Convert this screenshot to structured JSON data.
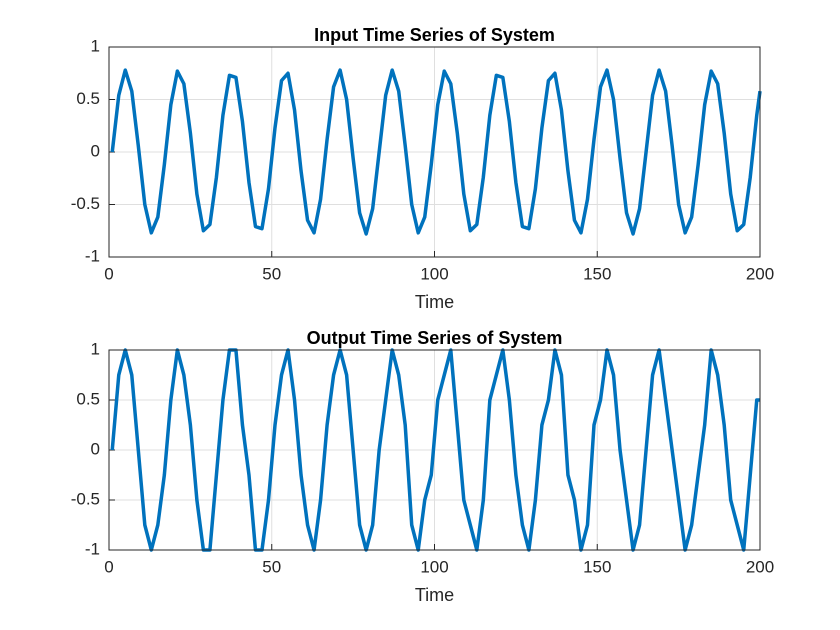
{
  "chart_data": [
    {
      "type": "line",
      "title": "Input Time Series of System",
      "x_label": "Time",
      "x": [
        1,
        3,
        5,
        7,
        9,
        11,
        13,
        15,
        17,
        19,
        21,
        23,
        25,
        27,
        29,
        31,
        33,
        35,
        37,
        39,
        41,
        43,
        45,
        47,
        49,
        51,
        53,
        55,
        57,
        59,
        61,
        63,
        65,
        67,
        69,
        71,
        73,
        75,
        77,
        79,
        81,
        83,
        85,
        87,
        89,
        91,
        93,
        95,
        97,
        99,
        101,
        103,
        105,
        107,
        109,
        111,
        113,
        115,
        117,
        119,
        121,
        123,
        125,
        127,
        129,
        131,
        133,
        135,
        137,
        139,
        141,
        143,
        145,
        147,
        149,
        151,
        153,
        155,
        157,
        159,
        161,
        163,
        165,
        167,
        169,
        171,
        173,
        175,
        177,
        179,
        181,
        183,
        185,
        187,
        189,
        191,
        193,
        195,
        197,
        199,
        200
      ],
      "series": [
        {
          "color": "#0072BD",
          "values": [
            0,
            0.54,
            0.78,
            0.58,
            0.06,
            -0.5,
            -0.77,
            -0.62,
            -0.12,
            0.45,
            0.77,
            0.65,
            0.18,
            -0.4,
            -0.75,
            -0.69,
            -0.24,
            0.35,
            0.73,
            0.71,
            0.29,
            -0.29,
            -0.71,
            -0.73,
            -0.35,
            0.23,
            0.68,
            0.75,
            0.4,
            -0.18,
            -0.65,
            -0.77,
            -0.45,
            0.12,
            0.62,
            0.78,
            0.5,
            -0.06,
            -0.58,
            -0.78,
            -0.54,
            0,
            0.54,
            0.78,
            0.58,
            0.06,
            -0.5,
            -0.77,
            -0.62,
            -0.12,
            0.45,
            0.77,
            0.65,
            0.18,
            -0.4,
            -0.75,
            -0.69,
            -0.24,
            0.35,
            0.73,
            0.71,
            0.29,
            -0.29,
            -0.71,
            -0.73,
            -0.35,
            0.23,
            0.68,
            0.75,
            0.4,
            -0.18,
            -0.65,
            -0.77,
            -0.45,
            0.12,
            0.62,
            0.78,
            0.5,
            -0.06,
            -0.58,
            -0.78,
            -0.54,
            0,
            0.54,
            0.78,
            0.58,
            0.06,
            -0.5,
            -0.77,
            -0.62,
            -0.12,
            0.45,
            0.77,
            0.65,
            0.18,
            -0.4,
            -0.75,
            -0.69,
            -0.24,
            0.35,
            0.58
          ]
        }
      ],
      "xlim": [
        0,
        200
      ],
      "xticks": [
        0,
        50,
        100,
        150,
        200
      ],
      "ylim": [
        -1,
        1
      ],
      "yticks": [
        -1,
        -0.5,
        0,
        0.5,
        1
      ],
      "grid": true
    },
    {
      "type": "line",
      "title": "Output Time Series of System",
      "x_label": "Time",
      "x": [
        1,
        3,
        5,
        7,
        9,
        11,
        13,
        15,
        17,
        19,
        21,
        23,
        25,
        27,
        29,
        31,
        33,
        35,
        37,
        39,
        41,
        43,
        45,
        47,
        49,
        51,
        53,
        55,
        57,
        59,
        61,
        63,
        65,
        67,
        69,
        71,
        73,
        75,
        77,
        79,
        81,
        83,
        85,
        87,
        89,
        91,
        93,
        95,
        97,
        99,
        101,
        103,
        105,
        107,
        109,
        111,
        113,
        115,
        117,
        119,
        121,
        123,
        125,
        127,
        129,
        131,
        133,
        135,
        137,
        139,
        141,
        143,
        145,
        147,
        149,
        151,
        153,
        155,
        157,
        159,
        161,
        163,
        165,
        167,
        169,
        171,
        173,
        175,
        177,
        179,
        181,
        183,
        185,
        187,
        189,
        191,
        193,
        195,
        197,
        199,
        200
      ],
      "series": [
        {
          "color": "#0072BD",
          "values": [
            0,
            0.75,
            1,
            0.75,
            0,
            -0.75,
            -1,
            -0.75,
            -0.25,
            0.5,
            1,
            0.75,
            0.25,
            -0.5,
            -1,
            -1,
            -0.25,
            0.5,
            1,
            1,
            0.25,
            -0.25,
            -1,
            -1,
            -0.5,
            0.25,
            0.75,
            1,
            0.5,
            -0.25,
            -0.75,
            -1,
            -0.5,
            0.25,
            0.75,
            1,
            0.75,
            0,
            -0.75,
            -1,
            -0.75,
            0,
            0.5,
            1,
            0.75,
            0.25,
            -0.75,
            -1,
            -0.5,
            -0.25,
            0.5,
            0.75,
            1,
            0.25,
            -0.5,
            -0.75,
            -1,
            -0.5,
            0.5,
            0.75,
            1,
            0.5,
            -0.25,
            -0.75,
            -1,
            -0.5,
            0.25,
            0.5,
            1,
            0.75,
            -0.25,
            -0.5,
            -1,
            -0.75,
            0.25,
            0.5,
            1,
            0.75,
            0,
            -0.5,
            -1,
            -0.75,
            0,
            0.75,
            1,
            0.5,
            0,
            -0.5,
            -1,
            -0.75,
            -0.25,
            0.25,
            1,
            0.75,
            0.25,
            -0.5,
            -0.75,
            -1,
            -0.25,
            0.5,
            0.5
          ]
        }
      ],
      "xlim": [
        0,
        200
      ],
      "xticks": [
        0,
        50,
        100,
        150,
        200
      ],
      "ylim": [
        -1,
        1
      ],
      "yticks": [
        -1,
        -0.5,
        0,
        0.5,
        1
      ],
      "grid": true
    }
  ]
}
